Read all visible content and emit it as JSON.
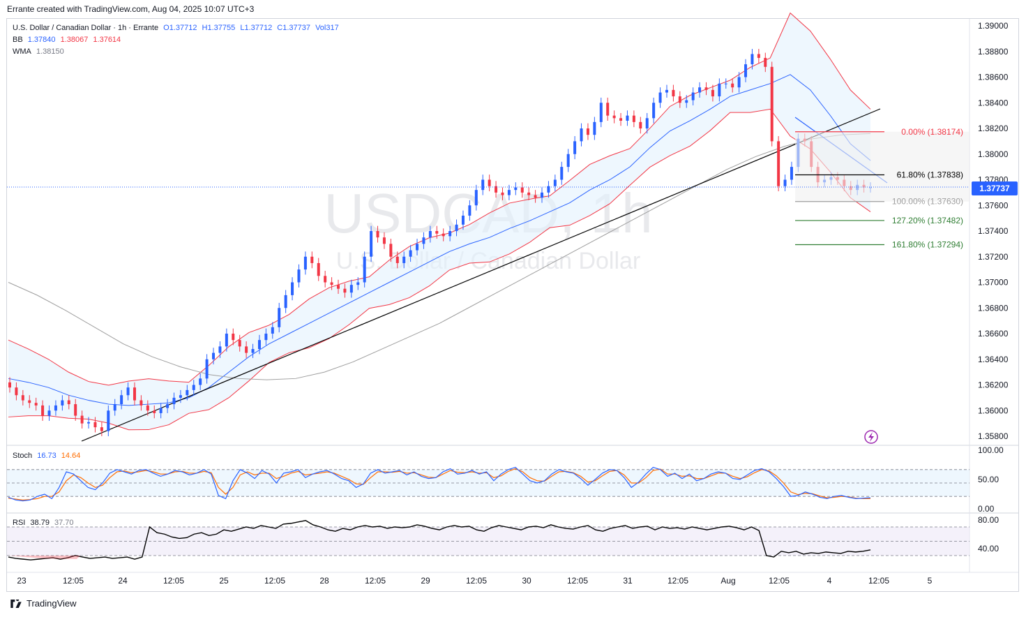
{
  "header": {
    "text": "Errante created with TradingView.com, Aug 04, 2025 10:07 UTC+3"
  },
  "legend": {
    "title": "U.S. Dollar / Canadian Dollar · 1h · Errante",
    "o": "O1.37712",
    "h": "H1.37755",
    "l": "L1.37712",
    "c": "C1.37737",
    "vol": "Vol317",
    "bb_label": "BB",
    "bb_mid": "1.37840",
    "bb_up": "1.38067",
    "bb_low": "1.37614",
    "wma_label": "WMA",
    "wma_val": "1.38150",
    "stoch_label": "Stoch",
    "stoch_k": "16.73",
    "stoch_d": "14.64",
    "rsi_label": "RSI",
    "rsi_val": "38.79",
    "rsi_ma": "37.70"
  },
  "watermark": {
    "symbol": "USDCAD, 1h",
    "name": "U.S. Dollar / Canadian Dollar"
  },
  "current_price": "1.37737",
  "footer": {
    "brand": "TradingView"
  },
  "colors": {
    "up": "#2962ff",
    "down": "#f23645",
    "bb": "#f23645",
    "bb_fill": "#e3f2fd",
    "wma": "#9e9e9e",
    "stoch_k": "#2962ff",
    "stoch_d": "#ff6d00",
    "rsi": "#000000"
  },
  "chart_data": {
    "type": "candlestick",
    "ylim": [
      1.3575,
      1.3905
    ],
    "price_ticks": [
      "1.39000",
      "1.38800",
      "1.38600",
      "1.38400",
      "1.38200",
      "1.38000",
      "1.37800",
      "1.37600",
      "1.37400",
      "1.37200",
      "1.37000",
      "1.36800",
      "1.36600",
      "1.36400",
      "1.36200",
      "1.36000",
      "1.35800"
    ],
    "x_ticks": [
      "23",
      "12:05",
      "24",
      "12:05",
      "25",
      "12:05",
      "28",
      "12:05",
      "29",
      "12:05",
      "30",
      "12:05",
      "31",
      "12:05",
      "Aug",
      "12:05",
      "4",
      "12:05",
      "5"
    ],
    "closes": [
      1.3618,
      1.3612,
      1.3608,
      1.3606,
      1.3604,
      1.3596,
      1.36,
      1.3604,
      1.3608,
      1.3605,
      1.3596,
      1.359,
      1.3591,
      1.3587,
      1.3584,
      1.36,
      1.3605,
      1.3612,
      1.3618,
      1.3608,
      1.3604,
      1.36,
      1.3598,
      1.3602,
      1.3605,
      1.361,
      1.3612,
      1.3616,
      1.362,
      1.3625,
      1.364,
      1.3645,
      1.365,
      1.366,
      1.3655,
      1.365,
      1.3645,
      1.3648,
      1.3655,
      1.366,
      1.3665,
      1.368,
      1.369,
      1.37,
      1.371,
      1.372,
      1.3715,
      1.3705,
      1.37,
      1.3698,
      1.3695,
      1.3692,
      1.3698,
      1.37,
      1.372,
      1.374,
      1.3735,
      1.373,
      1.372,
      1.3715,
      1.372,
      1.3725,
      1.373,
      1.3735,
      1.374,
      1.3738,
      1.3736,
      1.374,
      1.3745,
      1.3752,
      1.376,
      1.3772,
      1.378,
      1.3775,
      1.377,
      1.3768,
      1.3772,
      1.3774,
      1.377,
      1.3768,
      1.3766,
      1.377,
      1.3775,
      1.378,
      1.379,
      1.38,
      1.381,
      1.382,
      1.3815,
      1.3825,
      1.384,
      1.383,
      1.3828,
      1.3826,
      1.383,
      1.3825,
      1.382,
      1.3828,
      1.384,
      1.3848,
      1.385,
      1.3845,
      1.384,
      1.3842,
      1.3848,
      1.3852,
      1.385,
      1.3845,
      1.3855,
      1.3855,
      1.3852,
      1.386,
      1.387,
      1.3878,
      1.3875,
      1.3868,
      1.381,
      1.3775,
      1.378,
      1.379,
      1.3812,
      1.381,
      1.379,
      1.3778,
      1.378,
      1.3782,
      1.378,
      1.3775,
      1.3772,
      1.3776,
      1.3774,
      1.3774
    ],
    "bb_mid": [
      1.3625,
      1.3622,
      1.3618,
      1.3612,
      1.3608,
      1.3605,
      1.3604,
      1.3605,
      1.3606,
      1.361,
      1.3618,
      1.363,
      1.3642,
      1.3652,
      1.366,
      1.3668,
      1.3676,
      1.3684,
      1.3692,
      1.37,
      1.3708,
      1.3716,
      1.3724,
      1.373,
      1.3735,
      1.3742,
      1.3748,
      1.3755,
      1.3762,
      1.3772,
      1.378,
      1.379,
      1.3805,
      1.3818,
      1.3826,
      1.3835,
      1.3845,
      1.385,
      1.3855,
      1.3862,
      1.385,
      1.383,
      1.3808,
      1.3795
    ],
    "wma": [
      1.37,
      1.369,
      1.3678,
      1.3665,
      1.3652,
      1.3642,
      1.3634,
      1.3628,
      1.3625,
      1.3624,
      1.3625,
      1.363,
      1.3638,
      1.3648,
      1.3658,
      1.3668,
      1.368,
      1.3692,
      1.3704,
      1.3716,
      1.3728,
      1.374,
      1.3752,
      1.3764,
      1.3776,
      1.3788,
      1.3798,
      1.3806,
      1.3812,
      1.3815,
      1.3816
    ],
    "fib_levels": [
      {
        "label": "0.00% (1.38174)",
        "value": 1.38174,
        "color": "#f23645"
      },
      {
        "label": "61.80% (1.37838)",
        "value": 1.37838,
        "color": "#000000"
      },
      {
        "label": "100.00% (1.37630)",
        "value": 1.3763,
        "color": "#9e9e9e"
      },
      {
        "label": "127.20% (1.37482)",
        "value": 1.37482,
        "color": "#2e7d32"
      },
      {
        "label": "161.80% (1.37294)",
        "value": 1.37294,
        "color": "#2e7d32"
      }
    ],
    "stoch": {
      "ylim": [
        0,
        100
      ],
      "ticks": [
        "100.00",
        "50.00",
        "0.00"
      ],
      "k": [
        18,
        12,
        10,
        12,
        20,
        25,
        15,
        40,
        75,
        70,
        55,
        40,
        35,
        50,
        72,
        80,
        75,
        70,
        78,
        80,
        72,
        65,
        70,
        78,
        75,
        68,
        72,
        80,
        70,
        22,
        15,
        55,
        80,
        72,
        60,
        78,
        70,
        50,
        72,
        75,
        80,
        62,
        70,
        75,
        78,
        70,
        60,
        55,
        40,
        48,
        72,
        80,
        72,
        75,
        78,
        68,
        75,
        65,
        60,
        62,
        75,
        82,
        70,
        72,
        78,
        70,
        75,
        55,
        70,
        80,
        85,
        70,
        55,
        50,
        55,
        70,
        80,
        75,
        72,
        60,
        45,
        58,
        72,
        80,
        78,
        62,
        40,
        52,
        70,
        85,
        80,
        65,
        72,
        60,
        70,
        55,
        60,
        70,
        75,
        72,
        60,
        58,
        68,
        78,
        82,
        75,
        60,
        42,
        20,
        22,
        30,
        25,
        18,
        15,
        20,
        22,
        18,
        15,
        16,
        17
      ],
      "d": [
        16,
        14,
        12,
        13,
        15,
        20,
        20,
        30,
        55,
        68,
        62,
        50,
        40,
        45,
        62,
        75,
        77,
        73,
        75,
        78,
        75,
        70,
        70,
        75,
        76,
        72,
        72,
        76,
        73,
        40,
        25,
        40,
        68,
        75,
        68,
        72,
        72,
        60,
        65,
        72,
        76,
        68,
        70,
        72,
        75,
        72,
        65,
        58,
        48,
        47,
        62,
        75,
        75,
        74,
        76,
        72,
        73,
        68,
        63,
        62,
        70,
        78,
        74,
        73,
        75,
        72,
        73,
        62,
        66,
        76,
        82,
        75,
        62,
        55,
        54,
        65,
        75,
        76,
        73,
        65,
        52,
        55,
        66,
        76,
        78,
        68,
        50,
        50,
        62,
        78,
        81,
        70,
        70,
        65,
        66,
        60,
        60,
        66,
        72,
        72,
        65,
        60,
        64,
        73,
        80,
        77,
        66,
        50,
        30,
        24,
        27,
        26,
        21,
        17,
        18,
        20,
        19,
        16,
        15,
        15
      ]
    },
    "rsi": {
      "ticks": [
        "80.00",
        "40.00"
      ],
      "values": [
        28,
        26,
        25,
        24,
        25,
        26,
        27,
        25,
        27,
        30,
        28,
        26,
        27,
        28,
        26,
        27,
        28,
        25,
        28,
        70,
        62,
        60,
        56,
        54,
        55,
        60,
        62,
        58,
        60,
        66,
        64,
        67,
        70,
        68,
        72,
        70,
        68,
        74,
        75,
        77,
        79,
        73,
        70,
        66,
        64,
        68,
        66,
        70,
        72,
        70,
        71,
        68,
        70,
        69,
        70,
        73,
        71,
        68,
        66,
        70,
        72,
        70,
        71,
        66,
        64,
        69,
        72,
        70,
        68,
        66,
        70,
        71,
        69,
        73,
        70,
        68,
        67,
        70,
        72,
        66,
        64,
        68,
        70,
        72,
        68,
        70,
        71,
        66,
        70,
        68,
        69,
        67,
        70,
        68,
        66,
        68,
        70,
        71,
        69,
        66,
        70,
        65,
        30,
        28,
        36,
        34,
        36,
        32,
        34,
        33,
        35,
        34,
        33,
        36,
        35,
        36,
        38
      ]
    }
  }
}
